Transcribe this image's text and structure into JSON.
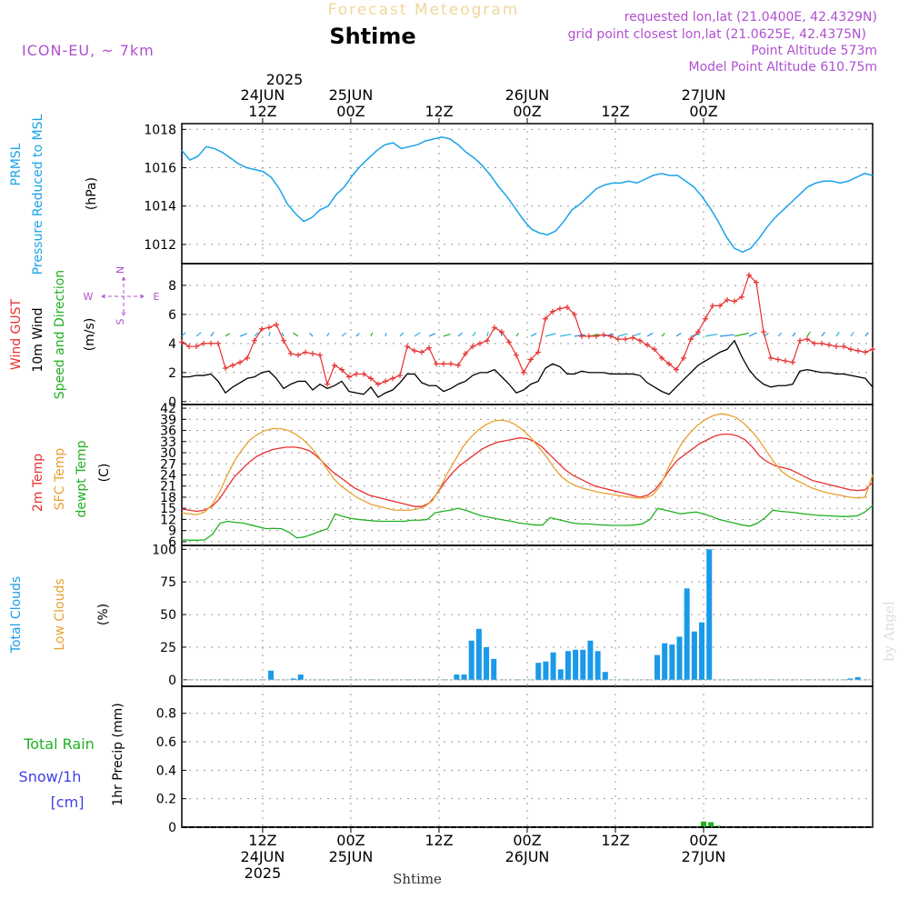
{
  "header": {
    "product_title": "Forecast Meteogram",
    "location": "Shtime",
    "model": "ICON-EU,  ~ 7km",
    "requested": "requested lon,lat (21.0400E, 42.4329N)",
    "gridpoint": "grid point closest lon,lat (21.0625E, 42.4375N)",
    "point_alt": "Point Altitude 573m",
    "model_alt": "Model Point Altitude 610.75m",
    "watermark": "by Angel",
    "footer_location": "Shtime"
  },
  "time_axis": {
    "top_year": "2025",
    "ticks": [
      {
        "t": 12,
        "top1": "24JUN",
        "top2": "12Z",
        "bot1": "12Z",
        "bot2": "24JUN",
        "bot3": "2025"
      },
      {
        "t": 24,
        "top1": "25JUN",
        "top2": "00Z",
        "bot1": "00Z",
        "bot2": "25JUN",
        "bot3": ""
      },
      {
        "t": 36,
        "top1": "",
        "top2": "12Z",
        "bot1": "12Z",
        "bot2": "",
        "bot3": ""
      },
      {
        "t": 48,
        "top1": "26JUN",
        "top2": "00Z",
        "bot1": "00Z",
        "bot2": "26JUN",
        "bot3": ""
      },
      {
        "t": 60,
        "top1": "",
        "top2": "12Z",
        "bot1": "12Z",
        "bot2": "",
        "bot3": ""
      },
      {
        "t": 72,
        "top1": "27JUN",
        "top2": "00Z",
        "bot1": "00Z",
        "bot2": "27JUN",
        "bot3": ""
      }
    ]
  },
  "colors": {
    "pressure": "#1aa3e8",
    "gust": "#e83030",
    "wind10m": "#000000",
    "dir": "#20b020",
    "t2m": "#e83030",
    "sfc": "#e8a030",
    "dew": "#20b020",
    "clouds_total": "#1a9ae8",
    "clouds_low": "#e8a030",
    "rain": "#20b020",
    "snow": "#4040e8",
    "header": "#b050d0"
  },
  "chart_data": [
    {
      "type": "line",
      "panel": "pressure",
      "side_labels": [
        {
          "text": "PRMSL",
          "color": "#1aa3e8"
        },
        {
          "text": "Pressure Reduced to MSL",
          "color": "#1aa3e8"
        },
        {
          "text": "(hPa)",
          "color": "#000000"
        }
      ],
      "ylim": [
        1011,
        1018.3
      ],
      "yticks": [
        1012,
        1014,
        1016,
        1018
      ],
      "series": [
        {
          "values": [
            1016.9,
            1016.4,
            1016.6,
            1017.1,
            1017.0,
            1016.8,
            1016.5,
            1016.2,
            1016.0,
            1015.9,
            1015.8,
            1015.5,
            1014.9,
            1014.1,
            1013.6,
            1013.2,
            1013.4,
            1013.8,
            1014.0,
            1014.6,
            1015.0,
            1015.6,
            1016.1,
            1016.5,
            1016.9,
            1017.2,
            1017.3,
            1017.0,
            1017.1,
            1017.2,
            1017.4,
            1017.5,
            1017.6,
            1017.5,
            1017.2,
            1016.8,
            1016.5,
            1016.1,
            1015.6,
            1015.0,
            1014.5,
            1013.9,
            1013.3,
            1012.8,
            1012.6,
            1012.5,
            1012.7,
            1013.2,
            1013.8,
            1014.1,
            1014.5,
            1014.9,
            1015.1,
            1015.2,
            1015.2,
            1015.3,
            1015.2,
            1015.4,
            1015.6,
            1015.7,
            1015.6,
            1015.6,
            1015.3,
            1015.0,
            1014.5,
            1013.9,
            1013.2,
            1012.4,
            1011.8,
            1011.6,
            1011.8,
            1012.3,
            1012.9,
            1013.4,
            1013.8,
            1014.2,
            1014.6,
            1015.0,
            1015.2,
            1015.3,
            1015.3,
            1015.2,
            1015.3,
            1015.5,
            1015.7,
            1015.6
          ]
        }
      ]
    },
    {
      "type": "line",
      "panel": "wind",
      "side_labels": [
        {
          "text": "Wind GUST",
          "color": "#e83030"
        },
        {
          "text": "10m Wind",
          "color": "#000000"
        },
        {
          "text": "Speed and Direction",
          "color": "#20b020"
        },
        {
          "text": "(m/s)",
          "color": "#000000"
        }
      ],
      "compass": {
        "n": "N",
        "s": "S",
        "w": "W",
        "e": "E"
      },
      "ylim": [
        -0.2,
        9.5
      ],
      "yticks": [
        0,
        2,
        4,
        6,
        8
      ],
      "series": [
        {
          "name": "Wind GUST",
          "values": [
            4.1,
            3.8,
            3.8,
            4.0,
            4.0,
            4.0,
            2.3,
            2.5,
            2.7,
            3.0,
            4.2,
            5.0,
            5.1,
            5.3,
            4.2,
            3.3,
            3.2,
            3.4,
            3.3,
            3.2,
            1.2,
            2.5,
            2.2,
            1.7,
            1.9,
            1.9,
            1.6,
            1.2,
            1.4,
            1.6,
            1.8,
            3.8,
            3.5,
            3.4,
            3.7,
            2.6,
            2.6,
            2.6,
            2.5,
            3.3,
            3.8,
            4.0,
            4.2,
            5.1,
            4.8,
            4.1,
            3.2,
            2.0,
            2.9,
            3.4,
            5.7,
            6.2,
            6.4,
            6.5,
            6.0,
            4.5,
            4.5,
            4.5,
            4.6,
            4.5,
            4.3,
            4.3,
            4.4,
            4.2,
            3.9,
            3.6,
            3.0,
            2.6,
            2.2,
            3.0,
            4.3,
            4.8,
            5.7,
            6.6,
            6.6,
            7.0,
            6.9,
            7.2,
            8.7,
            8.2,
            4.8,
            3.0,
            2.9,
            2.8,
            2.7,
            4.2,
            4.3,
            4.0,
            4.0,
            3.9,
            3.8,
            3.8,
            3.6,
            3.5,
            3.4,
            3.6
          ]
        },
        {
          "name": "10m Wind",
          "values": [
            1.7,
            1.7,
            1.8,
            1.8,
            1.9,
            1.4,
            0.6,
            1.0,
            1.3,
            1.6,
            1.7,
            2.0,
            2.1,
            1.6,
            0.9,
            1.2,
            1.4,
            1.4,
            0.8,
            1.2,
            0.9,
            1.1,
            1.4,
            0.7,
            0.6,
            0.5,
            1.0,
            0.3,
            0.6,
            0.8,
            1.3,
            1.9,
            1.9,
            1.3,
            1.1,
            1.1,
            0.7,
            0.9,
            1.2,
            1.4,
            1.8,
            2.0,
            2.0,
            2.2,
            1.7,
            1.2,
            0.6,
            0.8,
            1.2,
            1.4,
            2.3,
            2.6,
            2.4,
            1.9,
            1.9,
            2.1,
            2.0,
            2.0,
            2.0,
            1.9,
            1.9,
            1.9,
            1.9,
            1.8,
            1.3,
            1.0,
            0.7,
            0.5,
            1.0,
            1.5,
            2.0,
            2.5,
            2.8,
            3.1,
            3.4,
            3.6,
            4.2,
            3.1,
            2.2,
            1.6,
            1.2,
            1.0,
            1.1,
            1.1,
            1.2,
            2.1,
            2.2,
            2.1,
            2.0,
            2.0,
            1.9,
            1.9,
            1.8,
            1.7,
            1.6,
            1.0
          ]
        }
      ]
    },
    {
      "type": "line",
      "panel": "temperature",
      "side_labels": [
        {
          "text": "2m Temp",
          "color": "#e83030"
        },
        {
          "text": "SFC Temp",
          "color": "#e8a030"
        },
        {
          "text": "dewpt Temp",
          "color": "#20b020"
        },
        {
          "text": "(C)",
          "color": "#000000"
        }
      ],
      "ylim": [
        5,
        43
      ],
      "yticks": [
        6,
        9,
        12,
        15,
        18,
        21,
        24,
        27,
        30,
        33,
        36,
        39,
        42
      ],
      "series": [
        {
          "name": "2m Temp",
          "values": [
            14.8,
            14.5,
            14.2,
            14.5,
            15.5,
            17.5,
            20.5,
            23.5,
            25.5,
            27.5,
            29,
            30,
            30.8,
            31.2,
            31.5,
            31.5,
            31.2,
            30.5,
            29,
            27,
            25,
            23.5,
            22,
            20.5,
            19.5,
            18.5,
            18,
            17.5,
            17,
            16.5,
            16,
            15.5,
            15.5,
            16.5,
            19,
            22,
            24.5,
            26.5,
            28,
            29.5,
            31,
            32,
            32.8,
            33.2,
            33.6,
            34,
            33.8,
            33,
            31.5,
            29.5,
            27.5,
            25.5,
            24,
            23,
            22,
            21,
            20.5,
            20,
            19.5,
            19,
            18.5,
            18,
            18.5,
            20,
            22.5,
            25.5,
            28,
            29.5,
            31,
            32.5,
            33.5,
            34.5,
            35,
            35,
            34.5,
            33.5,
            31.5,
            29,
            27.5,
            26.5,
            26,
            25.5,
            24.5,
            23.5,
            22.5,
            22,
            21.5,
            21,
            20.5,
            20,
            19.8,
            20,
            22
          ]
        },
        {
          "name": "SFC Temp",
          "values": [
            13.8,
            13.5,
            13.3,
            14.0,
            16.0,
            19.5,
            24.0,
            28.0,
            31.0,
            33.5,
            35.0,
            36.0,
            36.5,
            36.5,
            36.0,
            35.0,
            33.5,
            31.5,
            29.0,
            26.0,
            23.0,
            21.0,
            19.5,
            18.0,
            17.0,
            16.0,
            15.5,
            15.0,
            14.5,
            14.5,
            14.5,
            14.8,
            15.5,
            17.0,
            20.5,
            24.5,
            28.0,
            31.5,
            34.0,
            36.0,
            37.5,
            38.5,
            38.8,
            38.5,
            37.5,
            36.0,
            34.0,
            31.5,
            29.0,
            26.0,
            23.5,
            22.0,
            21.0,
            20.3,
            19.8,
            19.3,
            19.0,
            18.6,
            18.3,
            18.0,
            17.8,
            17.8,
            18.5,
            21.0,
            25.5,
            29.5,
            33.0,
            35.5,
            37.5,
            39.0,
            40.0,
            40.5,
            40.2,
            39.5,
            38.0,
            36.0,
            33.5,
            30.5,
            27.5,
            25.0,
            23.5,
            22.5,
            21.5,
            20.5,
            19.8,
            19.2,
            18.8,
            18.4,
            18.0,
            17.8,
            18.0,
            24.0
          ]
        },
        {
          "name": "dewpt Temp",
          "values": [
            6.5,
            6.4,
            6.4,
            6.5,
            8.0,
            11.0,
            11.5,
            11.2,
            11.0,
            10.5,
            10.0,
            9.5,
            9.6,
            9.5,
            8.5,
            7.0,
            7.3,
            8.0,
            8.8,
            9.5,
            13.5,
            12.8,
            12.3,
            12.0,
            11.8,
            11.6,
            11.5,
            11.5,
            11.5,
            11.5,
            11.8,
            11.8,
            12.0,
            13.8,
            14.2,
            14.5,
            15.0,
            14.5,
            13.7,
            13.0,
            12.6,
            12.2,
            11.8,
            11.5,
            11.0,
            10.8,
            10.5,
            10.5,
            12.5,
            12.0,
            11.5,
            11.0,
            10.8,
            10.8,
            10.6,
            10.5,
            10.4,
            10.4,
            10.4,
            10.5,
            10.8,
            12.0,
            15.0,
            14.5,
            14.0,
            13.5,
            13.8,
            14.0,
            13.5,
            12.8,
            12.0,
            11.5,
            11.0,
            10.5,
            10.2,
            11.0,
            12.5,
            14.5,
            14.2,
            14.0,
            13.8,
            13.5,
            13.3,
            13.1,
            13.0,
            12.9,
            12.8,
            12.8,
            13.0,
            14.0,
            15.8
          ]
        }
      ]
    },
    {
      "type": "bar",
      "panel": "clouds",
      "side_labels": [
        {
          "text": "Total Clouds",
          "color": "#1a9ae8"
        },
        {
          "text": "Low Clouds",
          "color": "#e8a030"
        },
        {
          "text": "(%)",
          "color": "#000000"
        }
      ],
      "ylim": [
        -5,
        103
      ],
      "yticks": [
        0,
        25,
        50,
        75,
        100
      ],
      "series": [
        {
          "name": "Total Clouds",
          "values": [
            0,
            0,
            0,
            0,
            0,
            0,
            0,
            0,
            0,
            0,
            0,
            0,
            7,
            0,
            0,
            1,
            4,
            0,
            0,
            0,
            0,
            0,
            0,
            0,
            0,
            0,
            0,
            0,
            0,
            0,
            0,
            0,
            0,
            0,
            0,
            0,
            0,
            4,
            4,
            30,
            39,
            25,
            16,
            0,
            0,
            0,
            0,
            0,
            13,
            14,
            21,
            8,
            22,
            23,
            23,
            30,
            22,
            6,
            0,
            0,
            0,
            0,
            0,
            0,
            19,
            28,
            27,
            33,
            70,
            37,
            44,
            100,
            0,
            0,
            0,
            0,
            0,
            0,
            0,
            0,
            0,
            0,
            0,
            0,
            0,
            0,
            0,
            0,
            0,
            0,
            1,
            2,
            0,
            0
          ]
        }
      ]
    },
    {
      "type": "bar",
      "panel": "precip",
      "side_labels": [
        {
          "text": "Total  Rain",
          "color": "#20b020"
        },
        {
          "text": "Snow/1h",
          "color": "#4040e8"
        },
        {
          "text": "[cm]",
          "color": "#4040e8"
        },
        {
          "text": "1hr Precip (mm)",
          "color": "#000000"
        }
      ],
      "ylim": [
        0,
        0.99
      ],
      "yticks": [
        0,
        0.2,
        0.4,
        0.6,
        0.8
      ],
      "ytick_labels": [
        "0",
        "0.2",
        "0.4",
        "0.6",
        "0.8"
      ],
      "series": [
        {
          "name": "Total Rain",
          "x": [
            72,
            73,
            74
          ],
          "values": [
            0.04,
            0.035,
            0.01
          ]
        }
      ]
    }
  ]
}
